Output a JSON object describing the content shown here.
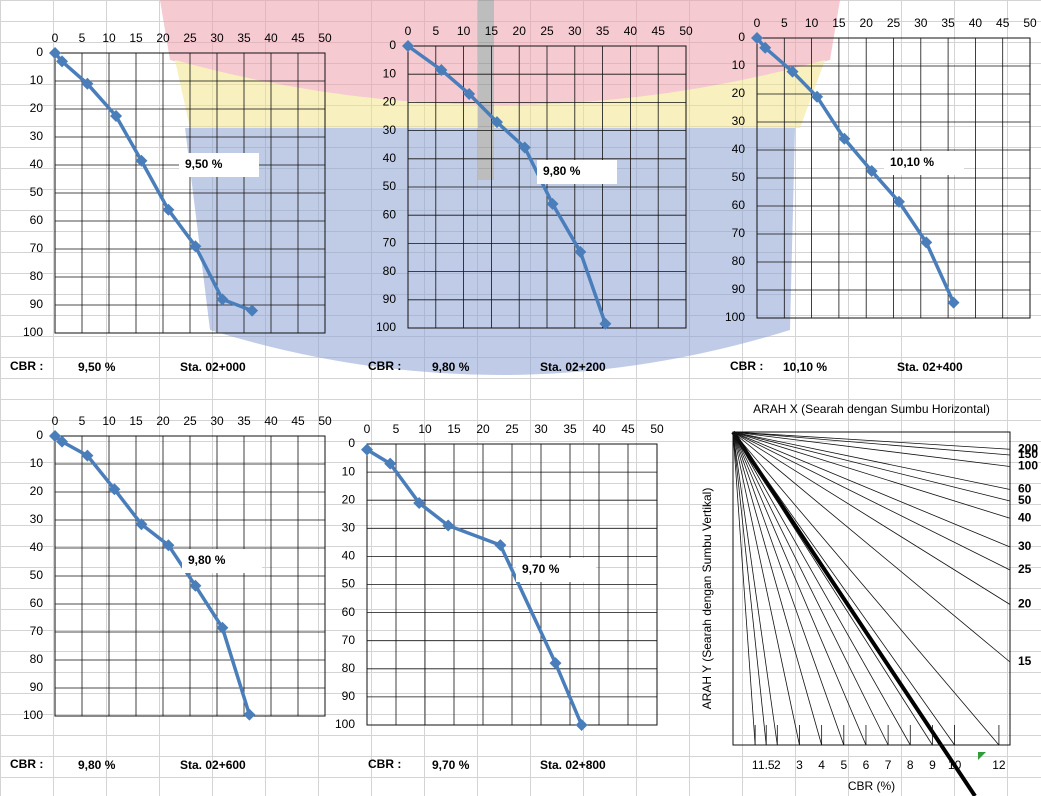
{
  "chart_data": [
    {
      "type": "line",
      "xlim": [
        0,
        50
      ],
      "xticks": [
        0,
        5,
        10,
        15,
        20,
        25,
        30,
        35,
        40,
        45,
        50
      ],
      "ylim": [
        0,
        100
      ],
      "yticks": [
        0,
        10,
        20,
        30,
        40,
        50,
        60,
        70,
        80,
        90,
        100
      ],
      "y_inverted": true,
      "grid": true,
      "series": [
        {
          "color": "#4a7ebb",
          "x": [
            0,
            1.3,
            6,
            11.3,
            16,
            21,
            26,
            31,
            36.5
          ],
          "values": [
            0,
            3,
            11,
            22.5,
            38.5,
            56,
            69,
            88,
            92
          ]
        }
      ],
      "annotation": "9,50 %",
      "footer": {
        "label": "CBR :",
        "cbr": "9,50 %",
        "station": "Sta. 02+000"
      }
    },
    {
      "type": "line",
      "xlim": [
        0,
        50
      ],
      "xticks": [
        0,
        5,
        10,
        15,
        20,
        25,
        30,
        35,
        40,
        45,
        50
      ],
      "ylim": [
        0,
        100
      ],
      "yticks": [
        0,
        10,
        20,
        30,
        40,
        50,
        60,
        70,
        80,
        90,
        100
      ],
      "y_inverted": true,
      "grid": true,
      "series": [
        {
          "color": "#4a7ebb",
          "x": [
            0,
            6,
            11,
            16,
            21,
            26,
            31,
            35.5
          ],
          "values": [
            0,
            8.5,
            17,
            27,
            36,
            56,
            73,
            98.5
          ]
        }
      ],
      "annotation": "9,80 %",
      "footer": {
        "label": "CBR :",
        "cbr": "9,80 %",
        "station": "Sta. 02+200"
      }
    },
    {
      "type": "line",
      "xlim": [
        0,
        50
      ],
      "xticks": [
        0,
        5,
        10,
        15,
        20,
        25,
        30,
        35,
        40,
        45,
        50
      ],
      "ylim": [
        0,
        100
      ],
      "yticks": [
        0,
        10,
        20,
        30,
        40,
        50,
        60,
        70,
        80,
        90,
        100
      ],
      "y_inverted": true,
      "grid": true,
      "series": [
        {
          "color": "#4a7ebb",
          "x": [
            0,
            1.5,
            6.5,
            11,
            16,
            21,
            26,
            31,
            36
          ],
          "values": [
            0,
            3.5,
            12,
            21,
            36,
            47.5,
            58.5,
            73,
            94.5
          ]
        }
      ],
      "annotation": "10,10 %",
      "footer": {
        "label": "CBR :",
        "cbr": "10,10 %",
        "station": "Sta. 02+400"
      }
    },
    {
      "type": "line",
      "xlim": [
        0,
        50
      ],
      "xticks": [
        0,
        5,
        10,
        15,
        20,
        25,
        30,
        35,
        40,
        45,
        50
      ],
      "ylim": [
        0,
        100
      ],
      "yticks": [
        0,
        10,
        20,
        30,
        40,
        50,
        60,
        70,
        80,
        90,
        100
      ],
      "y_inverted": true,
      "grid": true,
      "series": [
        {
          "color": "#4a7ebb",
          "x": [
            0,
            1.3,
            6,
            11,
            16,
            21,
            26,
            31,
            36
          ],
          "values": [
            0,
            2,
            7,
            19,
            31.5,
            39,
            53.5,
            68.5,
            99.5
          ]
        }
      ],
      "annotation": "9,80 %",
      "footer": {
        "label": "CBR :",
        "cbr": "9,80 %",
        "station": "Sta. 02+600"
      }
    },
    {
      "type": "line",
      "xlim": [
        0,
        50
      ],
      "xticks": [
        0,
        5,
        10,
        15,
        20,
        25,
        30,
        35,
        40,
        45,
        50
      ],
      "ylim": [
        0,
        100
      ],
      "yticks": [
        0,
        10,
        20,
        30,
        40,
        50,
        60,
        70,
        80,
        90,
        100
      ],
      "y_inverted": true,
      "grid": true,
      "series": [
        {
          "color": "#4a7ebb",
          "x": [
            0,
            4,
            9,
            14,
            23,
            32.5,
            37
          ],
          "values": [
            2,
            7,
            21,
            29,
            36,
            78,
            100
          ]
        }
      ],
      "annotation": "9,70 %",
      "footer": {
        "label": "CBR :",
        "cbr": "9,70 %",
        "station": "Sta. 02+800"
      }
    },
    {
      "type": "nomograph",
      "title": "ARAH X (Searah dengan Sumbu Horizontal)",
      "ylabel": "ARAH Y (Searah dengan Sumbu Vertikal)",
      "xlabel": "CBR (%)",
      "xlim": [
        0,
        12.5
      ],
      "xticks": [
        1,
        1.5,
        2,
        3,
        4,
        5,
        6,
        7,
        8,
        9,
        10,
        12
      ],
      "y2scale": "reciprocal",
      "y2ticks": [
        200,
        150,
        100,
        60,
        50,
        40,
        30,
        25,
        20,
        15
      ]
    }
  ]
}
